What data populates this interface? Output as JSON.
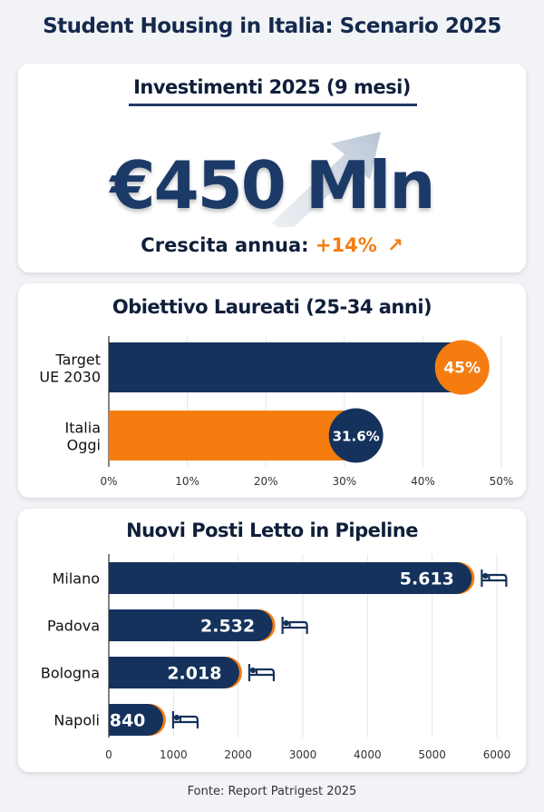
{
  "title": "Student Housing in Italia: Scenario 2025",
  "investment": {
    "heading": "Investimenti 2025 (9 mesi)",
    "amount": "€450 Mln",
    "growth_label": "Crescita annua:",
    "growth_value": "+14%",
    "growth_icon": "arrow-up-right-icon"
  },
  "colors": {
    "navy": "#15325c",
    "orange": "#f57c0f"
  },
  "chart_data": [
    {
      "type": "bar",
      "orientation": "horizontal",
      "title": "Obiettivo Laureati (25-34 anni)",
      "categories": [
        "Target UE 2030",
        "Italia Oggi"
      ],
      "category_lines": [
        [
          "Target",
          "UE 2030"
        ],
        [
          "Italia",
          "Oggi"
        ]
      ],
      "values": [
        45,
        31.6
      ],
      "data_labels": [
        "45%",
        "31.6%"
      ],
      "bar_colors": [
        "#15325c",
        "#f57c0f"
      ],
      "badge_colors": [
        "#f57c0f",
        "#15325c"
      ],
      "xlim": [
        0,
        50
      ],
      "ticks": [
        0,
        10,
        20,
        30,
        40,
        50
      ],
      "tick_labels": [
        "0%",
        "10%",
        "20%",
        "30%",
        "40%",
        "50%"
      ],
      "grid": true
    },
    {
      "type": "bar",
      "orientation": "horizontal",
      "title": "Nuovi Posti Letto in Pipeline",
      "categories": [
        "Milano",
        "Padova",
        "Bologna",
        "Napoli"
      ],
      "values": [
        5613,
        2532,
        2018,
        840
      ],
      "data_labels": [
        "5.613",
        "2.532",
        "2.018",
        "840"
      ],
      "bar_color": "#15325c",
      "accent_color": "#f57c0f",
      "icon": "bed-icon",
      "xlim": [
        0,
        6000
      ],
      "ticks": [
        0,
        1000,
        2000,
        3000,
        4000,
        5000,
        6000
      ],
      "tick_labels": [
        "0",
        "1000",
        "2000",
        "3000",
        "4000",
        "5000",
        "6000"
      ],
      "grid": true
    }
  ],
  "footer": "Fonte: Report Patrigest 2025"
}
